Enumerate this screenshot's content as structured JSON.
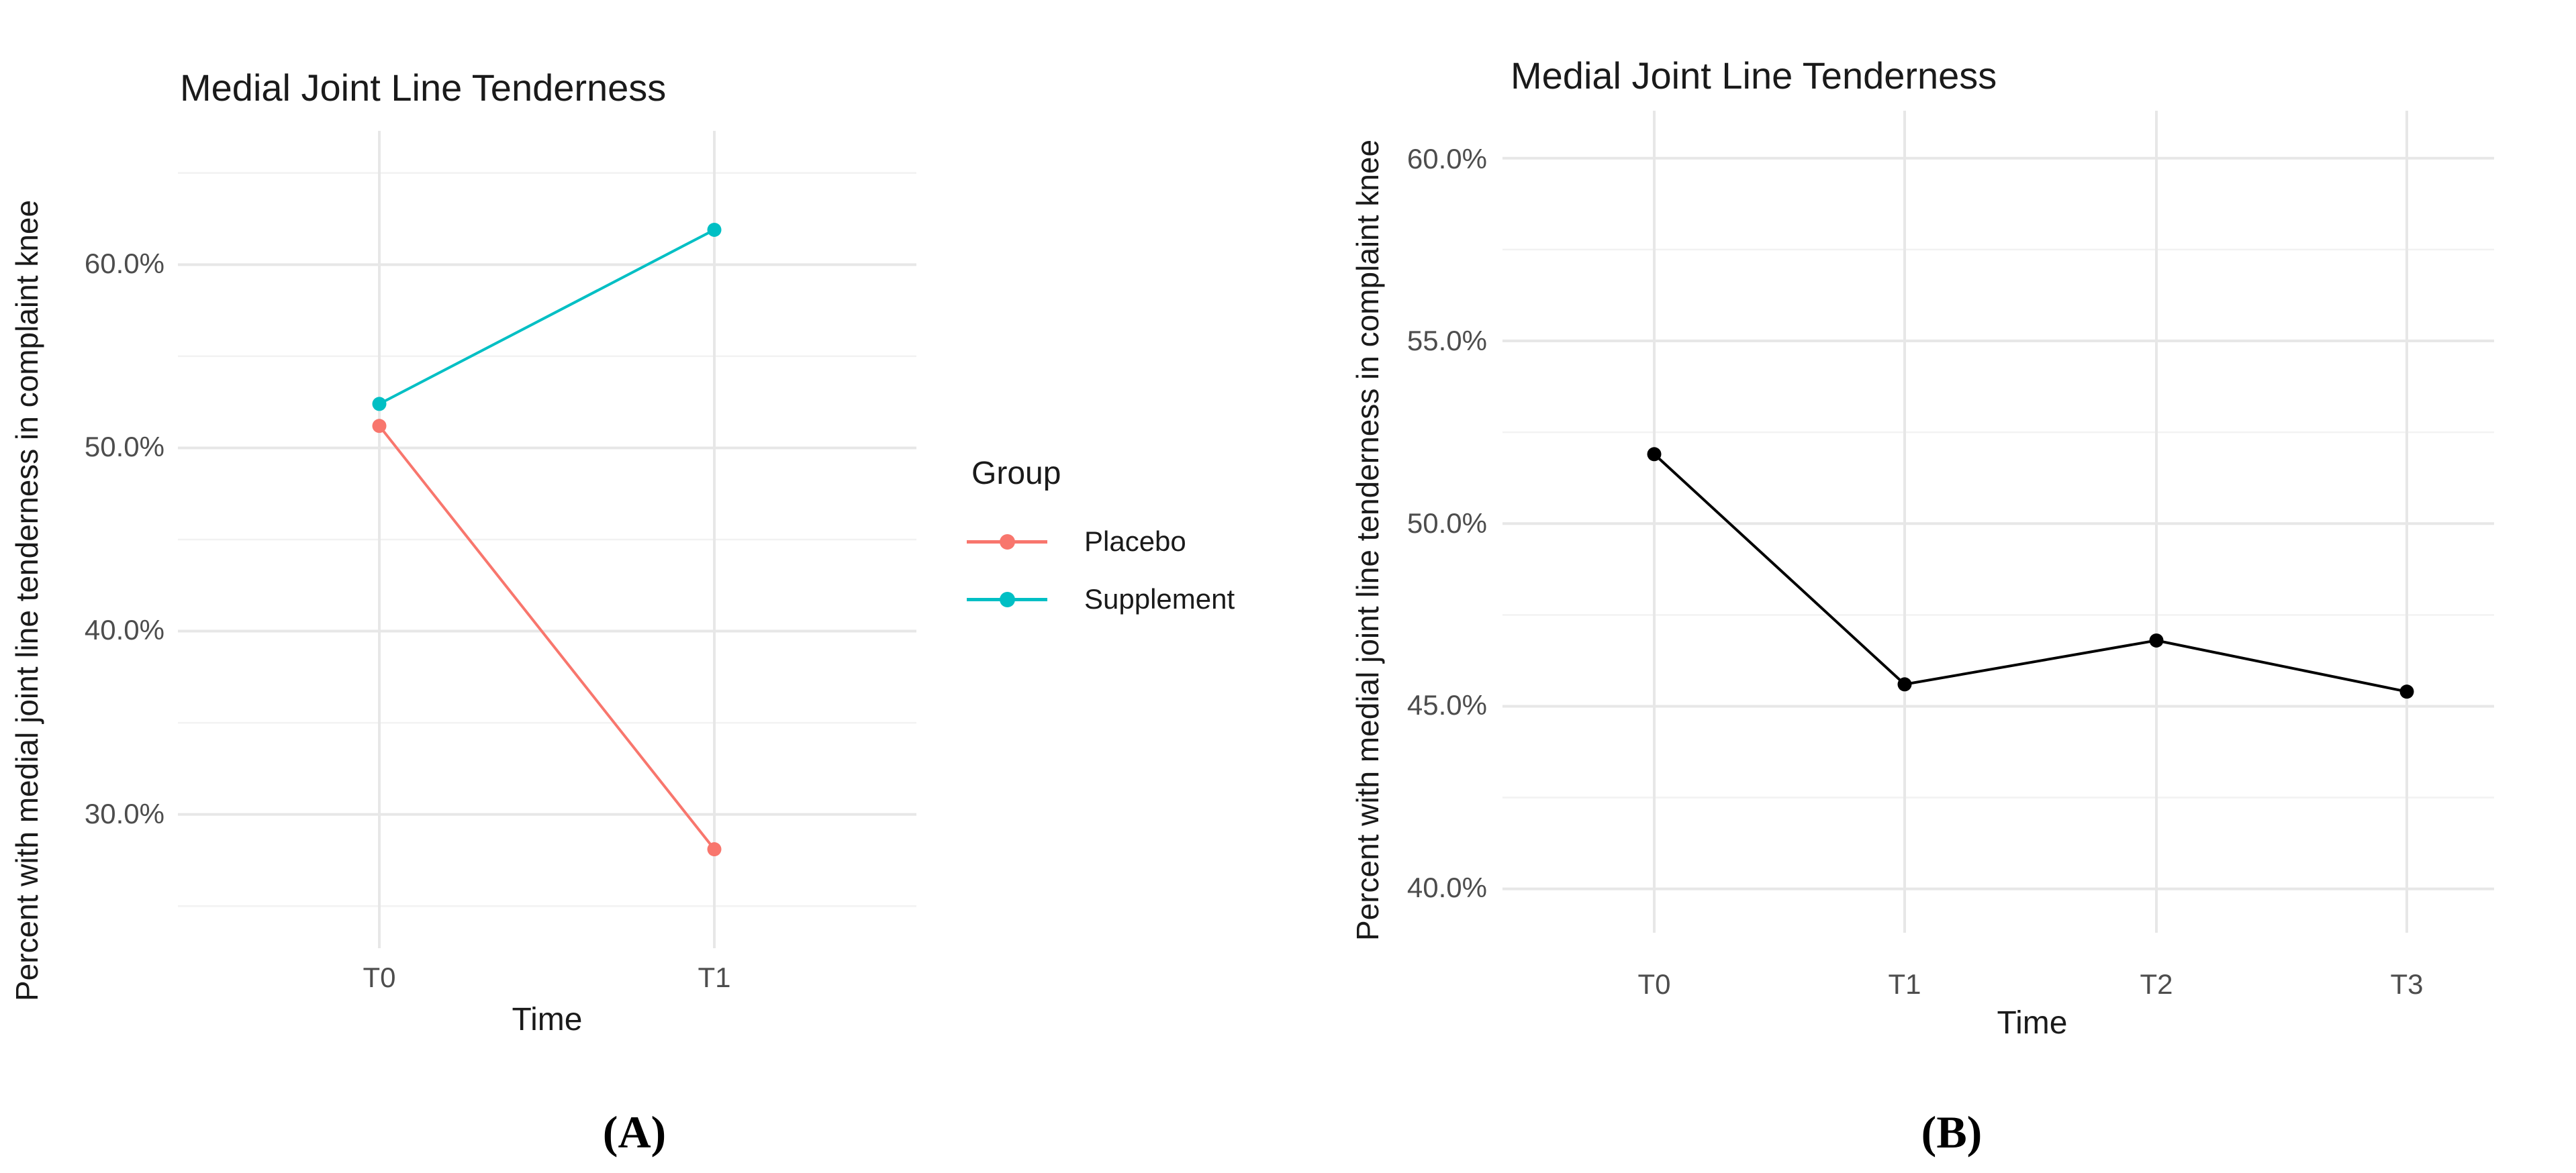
{
  "figure": {
    "captions": {
      "a": "(A)",
      "b": "(B)"
    }
  },
  "chart_data": [
    {
      "type": "line",
      "panel": "A",
      "title": "Medial Joint Line Tenderness",
      "xlabel": "Time",
      "ylabel": "Percent with medial joint line tenderness in complaint knee",
      "categories": [
        "T0",
        "T1"
      ],
      "series": [
        {
          "name": "Placebo",
          "color": "#F8766D",
          "values": [
            51.2,
            28.1
          ]
        },
        {
          "name": "Supplement",
          "color": "#00BFC4",
          "values": [
            52.4,
            61.9
          ]
        }
      ],
      "yticks": [
        60,
        50,
        40,
        30
      ],
      "ytick_labels": [
        "60.0%",
        "50.0%",
        "40.0%",
        "30.0%"
      ],
      "ylim": [
        22.7,
        67.3
      ],
      "grid": true,
      "legend": {
        "title": "Group",
        "position": "right"
      }
    },
    {
      "type": "line",
      "panel": "B",
      "title": "Medial Joint Line Tenderness",
      "xlabel": "Time",
      "ylabel": "Percent with medial joint line tenderness in complaint knee",
      "categories": [
        "T0",
        "T1",
        "T2",
        "T3"
      ],
      "series": [
        {
          "name": "",
          "color": "#000000",
          "values": [
            51.9,
            45.6,
            46.8,
            45.4
          ]
        }
      ],
      "yticks": [
        60,
        55,
        50,
        45,
        40
      ],
      "ytick_labels": [
        "60.0%",
        "55.0%",
        "50.0%",
        "45.0%",
        "40.0%"
      ],
      "ylim": [
        38.8,
        61.3
      ],
      "grid": true,
      "legend": null
    }
  ]
}
